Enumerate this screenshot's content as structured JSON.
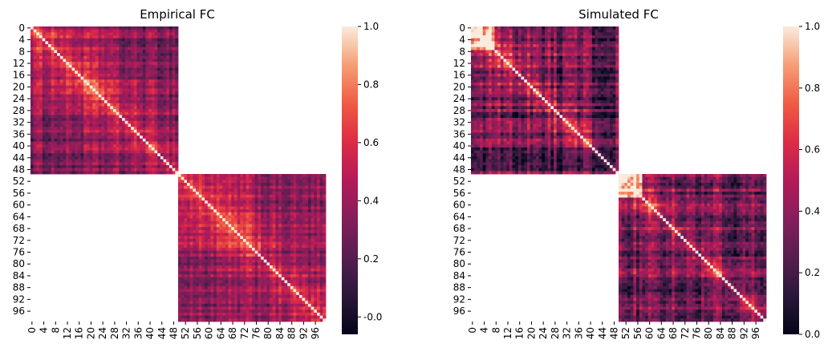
{
  "chart_data": [
    {
      "type": "heatmap",
      "title": "Empirical FC",
      "matrix_size": 100,
      "blocks": [
        {
          "rows": [
            0,
            49
          ],
          "cols": [
            0,
            49
          ]
        },
        {
          "rows": [
            50,
            99
          ],
          "cols": [
            50,
            99
          ]
        }
      ],
      "off_block_values": "missing",
      "diagonal_value": 1.0,
      "typical_value_range": [
        0.05,
        0.75
      ],
      "x_tick_labels": [
        "0",
        "4",
        "8",
        "12",
        "16",
        "20",
        "24",
        "28",
        "32",
        "36",
        "40",
        "44",
        "48",
        "52",
        "56",
        "60",
        "64",
        "68",
        "72",
        "76",
        "80",
        "84",
        "88",
        "92",
        "96"
      ],
      "y_tick_labels": [
        "0",
        "4",
        "8",
        "12",
        "16",
        "20",
        "24",
        "28",
        "32",
        "36",
        "40",
        "44",
        "48",
        "52",
        "56",
        "60",
        "64",
        "68",
        "72",
        "76",
        "80",
        "84",
        "88",
        "92",
        "96"
      ],
      "colorbar": {
        "vmin": -0.06,
        "vmax": 1.0,
        "ticks": [
          "-0.0",
          "0.2",
          "0.4",
          "0.6",
          "0.8",
          "1.0"
        ],
        "tick_values": [
          -0.0,
          0.2,
          0.4,
          0.6,
          0.8,
          1.0
        ]
      },
      "colormap": "rocket"
    },
    {
      "type": "heatmap",
      "title": "Simulated FC",
      "matrix_size": 100,
      "blocks": [
        {
          "rows": [
            0,
            49
          ],
          "cols": [
            0,
            49
          ]
        },
        {
          "rows": [
            50,
            99
          ],
          "cols": [
            50,
            99
          ]
        }
      ],
      "off_block_values": "missing",
      "diagonal_value": 1.0,
      "typical_value_range": [
        0.0,
        0.9
      ],
      "x_tick_labels": [
        "0",
        "4",
        "8",
        "12",
        "16",
        "20",
        "24",
        "28",
        "32",
        "36",
        "40",
        "44",
        "48",
        "52",
        "56",
        "60",
        "64",
        "68",
        "72",
        "76",
        "80",
        "84",
        "88",
        "92",
        "96"
      ],
      "y_tick_labels": [
        "0",
        "4",
        "8",
        "12",
        "16",
        "20",
        "24",
        "28",
        "32",
        "36",
        "40",
        "44",
        "48",
        "52",
        "56",
        "60",
        "64",
        "68",
        "72",
        "76",
        "80",
        "84",
        "88",
        "92",
        "96"
      ],
      "colorbar": {
        "vmin": 0.0,
        "vmax": 1.0,
        "ticks": [
          "0.0",
          "0.2",
          "0.4",
          "0.6",
          "0.8",
          "1.0"
        ],
        "tick_values": [
          0.0,
          0.2,
          0.4,
          0.6,
          0.8,
          1.0
        ]
      },
      "colormap": "rocket"
    }
  ]
}
